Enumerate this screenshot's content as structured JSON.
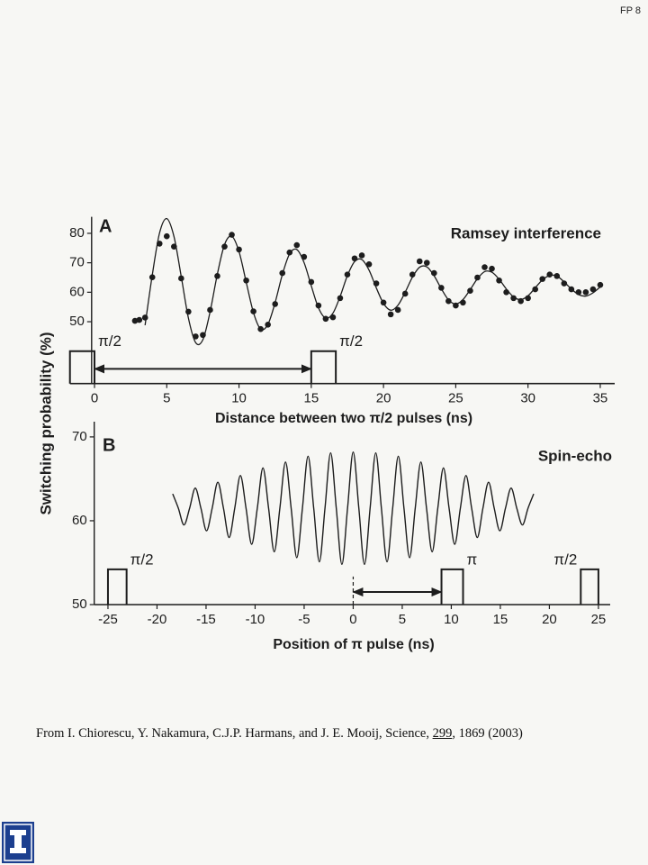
{
  "page_label": "FP 8",
  "ylabel": "Switching probability (%)",
  "chart_data": [
    {
      "type": "scatter",
      "panel": "A",
      "annotation": "Ramsey interference",
      "xlabel": "Distance between two π/2 pulses (ns)",
      "xlim": [
        -0.2,
        36
      ],
      "xticks": [
        0,
        5,
        10,
        15,
        20,
        25,
        30,
        35
      ],
      "ylim": [
        29,
        85
      ],
      "yticks": [
        50,
        60,
        70,
        80
      ],
      "color": "#1d1d1d",
      "points": {
        "x": [
          2.8,
          3.1,
          3.5,
          4.0,
          4.5,
          5.0,
          5.5,
          6.0,
          6.5,
          7.0,
          7.5,
          8.0,
          8.5,
          9.0,
          9.5,
          10.0,
          10.5,
          11.0,
          11.5,
          12.0,
          12.5,
          13.0,
          13.5,
          14.0,
          14.5,
          15.0,
          15.5,
          16.0,
          16.5,
          17.0,
          17.5,
          18.0,
          18.5,
          19.0,
          19.5,
          20.0,
          20.5,
          21.0,
          21.5,
          22.0,
          22.5,
          23.0,
          23.5,
          24.0,
          24.5,
          25.0,
          25.5,
          26.0,
          26.5,
          27.0,
          27.5,
          28.0,
          28.5,
          29.0,
          29.5,
          30.0,
          30.5,
          31.0,
          31.5,
          32.0,
          32.5,
          33.0,
          33.5,
          34.0,
          34.5,
          35.0
        ],
        "values": [
          50.3,
          50.6,
          51.4,
          65.1,
          76.5,
          79.0,
          75.5,
          64.7,
          53.4,
          45.0,
          45.5,
          54.0,
          65.5,
          75.5,
          79.5,
          74.5,
          64.0,
          53.5,
          47.5,
          49.0,
          56.0,
          66.5,
          73.5,
          76.0,
          72.0,
          63.5,
          55.5,
          51.0,
          51.5,
          58.0,
          66.0,
          71.5,
          72.5,
          69.5,
          63.0,
          56.5,
          52.5,
          54.0,
          59.5,
          66.0,
          70.5,
          70.0,
          66.5,
          61.5,
          57.0,
          55.5,
          56.5,
          60.5,
          65.0,
          68.5,
          68.0,
          64.0,
          60.0,
          58.0,
          57.0,
          58.0,
          61.0,
          64.5,
          66.0,
          65.5,
          63.0,
          61.0,
          60.0,
          60.0,
          61.0,
          62.5
        ]
      },
      "fit": {
        "x": [
          3.5,
          4.0,
          4.5,
          5.0,
          5.5,
          6.0,
          6.5,
          7.0,
          7.5,
          8.0,
          8.5,
          9.0,
          9.5,
          10.0,
          10.5,
          11.0,
          11.5,
          12.0,
          12.5,
          13.0,
          13.5,
          14.0,
          14.5,
          15.0,
          15.5,
          16.0,
          16.5,
          17.0,
          17.5,
          18.0,
          18.5,
          19.0,
          19.5,
          20.0,
          20.5,
          21.0,
          21.5,
          22.0,
          22.5,
          23.0,
          23.5,
          24.0,
          24.5,
          25.0,
          25.5,
          26.0,
          26.5,
          27.0,
          27.5,
          28.0,
          28.5,
          29.0,
          29.5,
          30.0,
          30.5,
          31.0,
          31.5,
          32.0,
          32.5,
          33.0,
          33.5,
          34.0,
          34.5,
          35.0
        ],
        "values": [
          48.8,
          65.9,
          80.1,
          85.0,
          78.9,
          65.4,
          51.2,
          42.9,
          43.9,
          53.4,
          66.1,
          76.2,
          79.0,
          73.8,
          63.4,
          53.1,
          47.5,
          49.1,
          56.5,
          66.0,
          73.0,
          74.5,
          70.1,
          62.2,
          54.7,
          51.2,
          52.9,
          58.6,
          65.6,
          70.4,
          71.1,
          67.5,
          61.5,
          56.2,
          53.9,
          55.6,
          60.0,
          65.1,
          68.5,
          68.6,
          65.6,
          61.2,
          57.4,
          56.0,
          57.5,
          60.9,
          64.6,
          67.0,
          66.8,
          64.4,
          61.1,
          58.4,
          57.5,
          58.8,
          61.5,
          64.2,
          65.7,
          65.5,
          63.5,
          61.1,
          59.2,
          58.7,
          59.8,
          61.8
        ]
      },
      "pulses": [
        {
          "start": -1.7,
          "end": 0,
          "height": 40,
          "label": "π/2"
        },
        {
          "start": 15,
          "end": 16.7,
          "height": 40,
          "label": "π/2"
        }
      ],
      "arrow": {
        "from": 0,
        "to": 15,
        "y": 34
      }
    },
    {
      "type": "line",
      "panel": "B",
      "annotation": "Spin-echo",
      "xlabel": "Position of π pulse (ns)",
      "xlim": [
        -26.4,
        26.2
      ],
      "xticks": [
        -25,
        -20,
        -15,
        -10,
        -5,
        0,
        5,
        10,
        15,
        20,
        25
      ],
      "ylim": [
        50,
        71.6
      ],
      "yticks": [
        50,
        60,
        70
      ],
      "color": "#1d1d1d",
      "x": [
        -18.4,
        -17.825,
        -17.25,
        -16.675,
        -16.1,
        -15.525,
        -14.95,
        -14.375,
        -13.8,
        -13.225,
        -12.65,
        -12.075,
        -11.5,
        -10.925,
        -10.35,
        -9.775,
        -9.2,
        -8.625,
        -8.05,
        -7.475,
        -6.9,
        -6.325,
        -5.75,
        -5.175,
        -4.6,
        -4.025,
        -3.45,
        -2.875,
        -2.3,
        -1.725,
        -1.15,
        -0.575,
        0,
        0.575,
        1.15,
        1.725,
        2.3,
        2.875,
        3.45,
        4.025,
        4.6,
        5.175,
        5.75,
        6.325,
        6.9,
        7.475,
        8.05,
        8.625,
        9.2,
        9.775,
        10.35,
        10.925,
        11.5,
        12.075,
        12.65,
        13.225,
        13.8,
        14.375,
        14.95,
        15.525,
        16.1,
        16.675,
        17.25,
        17.825,
        18.4
      ],
      "values": [
        63.2,
        61.5,
        59.5,
        61.5,
        63.9,
        61.5,
        58.8,
        61.5,
        64.6,
        61.5,
        58.0,
        61.5,
        65.4,
        61.5,
        57.2,
        61.5,
        66.3,
        61.5,
        56.3,
        61.5,
        67.0,
        61.5,
        55.6,
        61.5,
        67.7,
        61.5,
        55.1,
        61.5,
        68.1,
        61.5,
        54.8,
        61.5,
        68.2,
        61.5,
        54.8,
        61.5,
        68.1,
        61.5,
        55.1,
        61.5,
        67.7,
        61.5,
        55.6,
        61.5,
        67.0,
        61.5,
        56.3,
        61.5,
        66.3,
        61.5,
        57.2,
        61.5,
        65.4,
        61.5,
        58.0,
        61.5,
        64.6,
        61.5,
        58.8,
        61.5,
        63.9,
        61.5,
        59.5,
        61.5,
        63.2
      ],
      "pulses": [
        {
          "start": -25,
          "end": -23.1,
          "height": 54.2,
          "label": "π/2"
        },
        {
          "start": 9,
          "end": 11.2,
          "height": 54.2,
          "label": "π"
        },
        {
          "start": 23.2,
          "end": 25,
          "height": 54.2,
          "label": "π/2"
        }
      ],
      "arrow": {
        "from": 0,
        "to": 9,
        "y": 51.5,
        "guide": true
      }
    }
  ],
  "citation": {
    "prefix": "From I. Chiorescu, Y. Nakamura, C.J.P. Harmans, and J. E. Mooij, Science, ",
    "volume": "299",
    "suffix": ", 1869 (2003)"
  }
}
